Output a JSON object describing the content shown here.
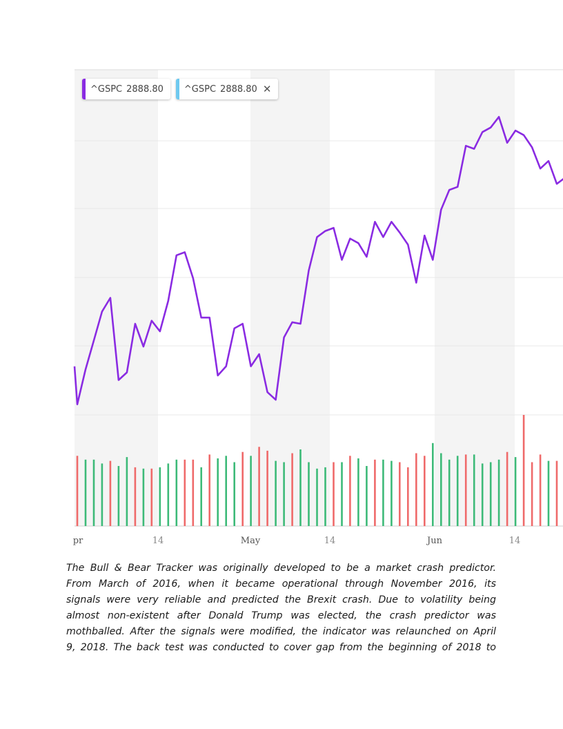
{
  "legend": [
    {
      "symbol": "^GSPC",
      "value": "2888.80",
      "color": "#8a2be2",
      "closable": false
    },
    {
      "symbol": "^GSPC",
      "value": "2888.80",
      "color": "#6ec9ef",
      "closable": true,
      "close_glyph": "✕"
    }
  ],
  "chart_data": {
    "type": "line",
    "x_ticks": [
      "pr",
      "14",
      "May",
      "14",
      "Jun",
      "14"
    ],
    "month_ticks": [
      "pr",
      "May",
      "Jun"
    ],
    "grid": true,
    "colors": {
      "price_line": "#8a2be2",
      "volume_up": "#3dba78",
      "volume_down": "#ef6a6a",
      "band": "#f4f4f4"
    },
    "series": [
      {
        "type": "line",
        "values": [
          2640,
          2663,
          2682,
          2701,
          2710,
          2656,
          2661,
          2693,
          2678,
          2695,
          2688,
          2708,
          2738,
          2740,
          2723,
          2697,
          2697,
          2659,
          2665,
          2690,
          2693,
          2665,
          2673,
          2648,
          2643,
          2684,
          2694,
          2693,
          2728,
          2750,
          2754,
          2756,
          2735,
          2749,
          2746,
          2737,
          2760,
          2750,
          2760,
          2753,
          2745,
          2720,
          2751,
          2735,
          2768,
          2781,
          2783,
          2810,
          2808,
          2819,
          2822,
          2829,
          2812,
          2820,
          2817,
          2809,
          2795,
          2800,
          2785,
          2789
        ]
      },
      {
        "type": "bar",
        "values": [
          0.55,
          0.52,
          0.52,
          0.49,
          0.51,
          0.47,
          0.54,
          0.46,
          0.45,
          0.45,
          0.46,
          0.49,
          0.52,
          0.52,
          0.52,
          0.46,
          0.56,
          0.53,
          0.55,
          0.5,
          0.58,
          0.55,
          0.62,
          0.59,
          0.51,
          0.5,
          0.57,
          0.6,
          0.5,
          0.45,
          0.46,
          0.5,
          0.5,
          0.55,
          0.53,
          0.47,
          0.52,
          0.52,
          0.51,
          0.5,
          0.46,
          0.57,
          0.55,
          0.65,
          0.57,
          0.52,
          0.55,
          0.56,
          0.56,
          0.49,
          0.5,
          0.52,
          0.58,
          0.54,
          0.87,
          0.5,
          0.56,
          0.51,
          0.51,
          0.52
        ],
        "directions": [
          "down",
          "up",
          "up",
          "up",
          "down",
          "up",
          "up",
          "down",
          "up",
          "down",
          "up",
          "up",
          "up",
          "down",
          "down",
          "up",
          "down",
          "up",
          "up",
          "up",
          "down",
          "up",
          "down",
          "down",
          "up",
          "up",
          "down",
          "up",
          "up",
          "up",
          "up",
          "down",
          "up",
          "down",
          "up",
          "up",
          "down",
          "up",
          "up",
          "down",
          "down",
          "down",
          "down",
          "up",
          "up",
          "up",
          "up",
          "down",
          "up",
          "up",
          "up",
          "up",
          "down",
          "up",
          "down",
          "down",
          "down",
          "up",
          "down",
          "down"
        ]
      }
    ]
  },
  "paragraph": {
    "lines": [
      "The Bull & Bear Tracker was originally developed to be a market crash predictor.",
      "From March of 2016, when it became operational through November 2016, its",
      "signals were very reliable and predicted the Brexit crash. Due to volatility being",
      "almost non-existent after Donald Trump was elected, the crash predictor was",
      "mothballed. After the signals were modified, the indicator was relaunched on April",
      "9, 2018. The back test was conducted to cover gap from the beginning of 2018 to"
    ]
  }
}
